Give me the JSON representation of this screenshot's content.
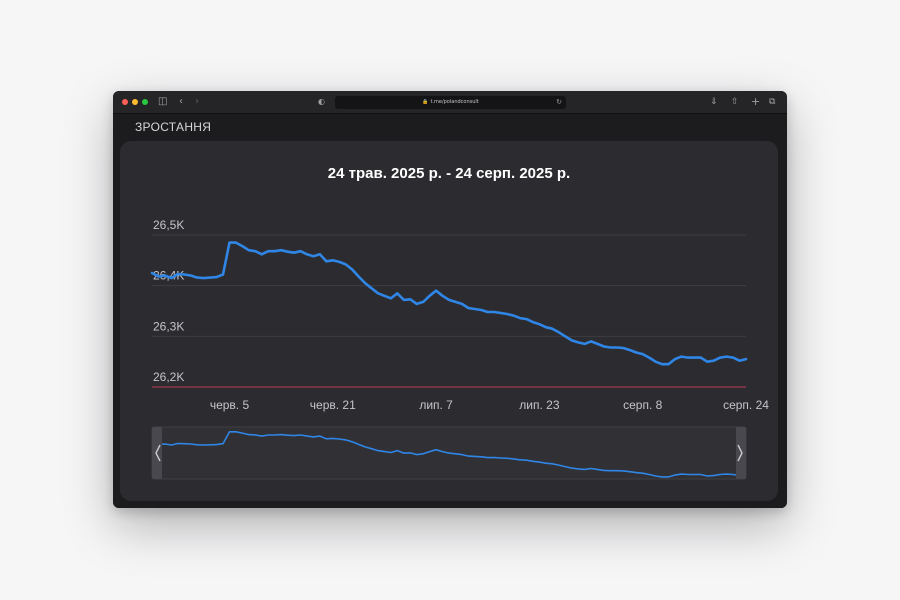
{
  "browser": {
    "url": "t.me/polandconsult",
    "icons": [
      "sidebar-icon",
      "back-icon",
      "forward-icon",
      "shield-icon",
      "lock-icon",
      "reload-icon",
      "download-icon",
      "share-icon",
      "new-tab-icon",
      "tabs-icon"
    ]
  },
  "page": {
    "section_title": "ЗРОСТАННЯ",
    "range_title": "24 трав. 2025 р. - 24 серп. 2025 р."
  },
  "colors": {
    "line": "#2f86e6",
    "baseline": "#c0395a",
    "card": "#2c2c30"
  },
  "chart_data": {
    "type": "line",
    "title": "24 трав. 2025 р. - 24 серп. 2025 р.",
    "xlabel": "",
    "ylabel": "",
    "y_ticks": [
      "26,2K",
      "26,3K",
      "26,4K",
      "26,5K"
    ],
    "y_tick_values": [
      26200,
      26300,
      26400,
      26500
    ],
    "ylim": [
      26200,
      26500
    ],
    "x_ticks": [
      "черв. 5",
      "черв. 21",
      "лип. 7",
      "лип. 23",
      "серп. 8",
      "серп. 24"
    ],
    "x_tick_dates": [
      "2025-06-05",
      "2025-06-21",
      "2025-07-07",
      "2025-07-23",
      "2025-08-08",
      "2025-08-24"
    ],
    "grid": true,
    "navigator": true,
    "series": [
      {
        "x": [
          "2025-05-24",
          "2025-05-25",
          "2025-05-26",
          "2025-05-27",
          "2025-05-28",
          "2025-05-29",
          "2025-05-30",
          "2025-05-31",
          "2025-06-01",
          "2025-06-02",
          "2025-06-03",
          "2025-06-04",
          "2025-06-05",
          "2025-06-06",
          "2025-06-07",
          "2025-06-08",
          "2025-06-09",
          "2025-06-10",
          "2025-06-11",
          "2025-06-12",
          "2025-06-13",
          "2025-06-14",
          "2025-06-15",
          "2025-06-16",
          "2025-06-17",
          "2025-06-18",
          "2025-06-19",
          "2025-06-20",
          "2025-06-21",
          "2025-06-22",
          "2025-06-23",
          "2025-06-24",
          "2025-06-25",
          "2025-06-26",
          "2025-06-27",
          "2025-06-28",
          "2025-06-29",
          "2025-06-30",
          "2025-07-01",
          "2025-07-02",
          "2025-07-03",
          "2025-07-04",
          "2025-07-05",
          "2025-07-06",
          "2025-07-07",
          "2025-07-08",
          "2025-07-09",
          "2025-07-10",
          "2025-07-11",
          "2025-07-12",
          "2025-07-13",
          "2025-07-14",
          "2025-07-15",
          "2025-07-16",
          "2025-07-17",
          "2025-07-18",
          "2025-07-19",
          "2025-07-20",
          "2025-07-21",
          "2025-07-22",
          "2025-07-23",
          "2025-07-24",
          "2025-07-25",
          "2025-07-26",
          "2025-07-27",
          "2025-07-28",
          "2025-07-29",
          "2025-07-30",
          "2025-07-31",
          "2025-08-01",
          "2025-08-02",
          "2025-08-03",
          "2025-08-04",
          "2025-08-05",
          "2025-08-06",
          "2025-08-07",
          "2025-08-08",
          "2025-08-09",
          "2025-08-10",
          "2025-08-11",
          "2025-08-12",
          "2025-08-13",
          "2025-08-14",
          "2025-08-15",
          "2025-08-16",
          "2025-08-17",
          "2025-08-18",
          "2025-08-19",
          "2025-08-20",
          "2025-08-21",
          "2025-08-22",
          "2025-08-23",
          "2025-08-24"
        ],
        "y": [
          26425,
          26418,
          26420,
          26415,
          26423,
          26422,
          26420,
          26416,
          26415,
          26416,
          26417,
          26422,
          26485,
          26485,
          26478,
          26470,
          26468,
          26462,
          26468,
          26468,
          26470,
          26467,
          26465,
          26468,
          26462,
          26458,
          26462,
          26448,
          26450,
          26447,
          26442,
          26432,
          26418,
          26405,
          26395,
          26385,
          26380,
          26375,
          26385,
          26372,
          26373,
          26364,
          26368,
          26380,
          26390,
          26380,
          26372,
          26368,
          26364,
          26356,
          26354,
          26352,
          26348,
          26348,
          26346,
          26344,
          26341,
          26336,
          26334,
          26328,
          26324,
          26318,
          26315,
          26308,
          26300,
          26292,
          26288,
          26285,
          26290,
          26285,
          26280,
          26278,
          26278,
          26277,
          26273,
          26268,
          26265,
          26258,
          26250,
          26245,
          26245,
          26255,
          26260,
          26258,
          26258,
          26258,
          26250,
          26252,
          26258,
          26260,
          26258,
          26252,
          26255
        ]
      }
    ]
  }
}
